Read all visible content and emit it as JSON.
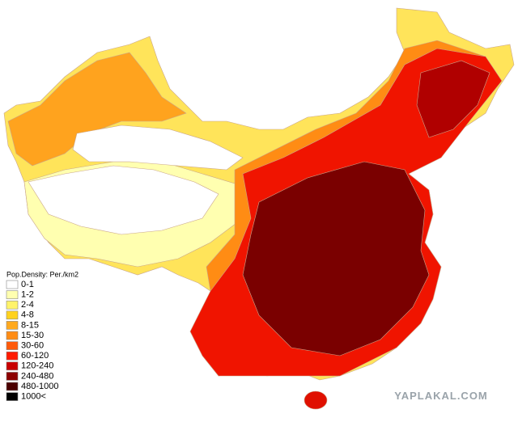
{
  "legend": {
    "title": "Pop.Density: Per./km2",
    "items": [
      {
        "label": "0-1",
        "color": "#ffffff"
      },
      {
        "label": "1-2",
        "color": "#ffffb0"
      },
      {
        "label": "2-4",
        "color": "#fff36a"
      },
      {
        "label": "4-8",
        "color": "#ffd21e"
      },
      {
        "label": "8-15",
        "color": "#ffa91e"
      },
      {
        "label": "15-30",
        "color": "#ff8c14"
      },
      {
        "label": "30-60",
        "color": "#ff5a0a"
      },
      {
        "label": "60-120",
        "color": "#ff1a00"
      },
      {
        "label": "120-240",
        "color": "#c80000"
      },
      {
        "label": "240-480",
        "color": "#8c0000"
      },
      {
        "label": "480-1000",
        "color": "#4a0000"
      },
      {
        "label": "1000<",
        "color": "#000000"
      }
    ]
  },
  "watermark": "YAPLAKAL.COM"
}
